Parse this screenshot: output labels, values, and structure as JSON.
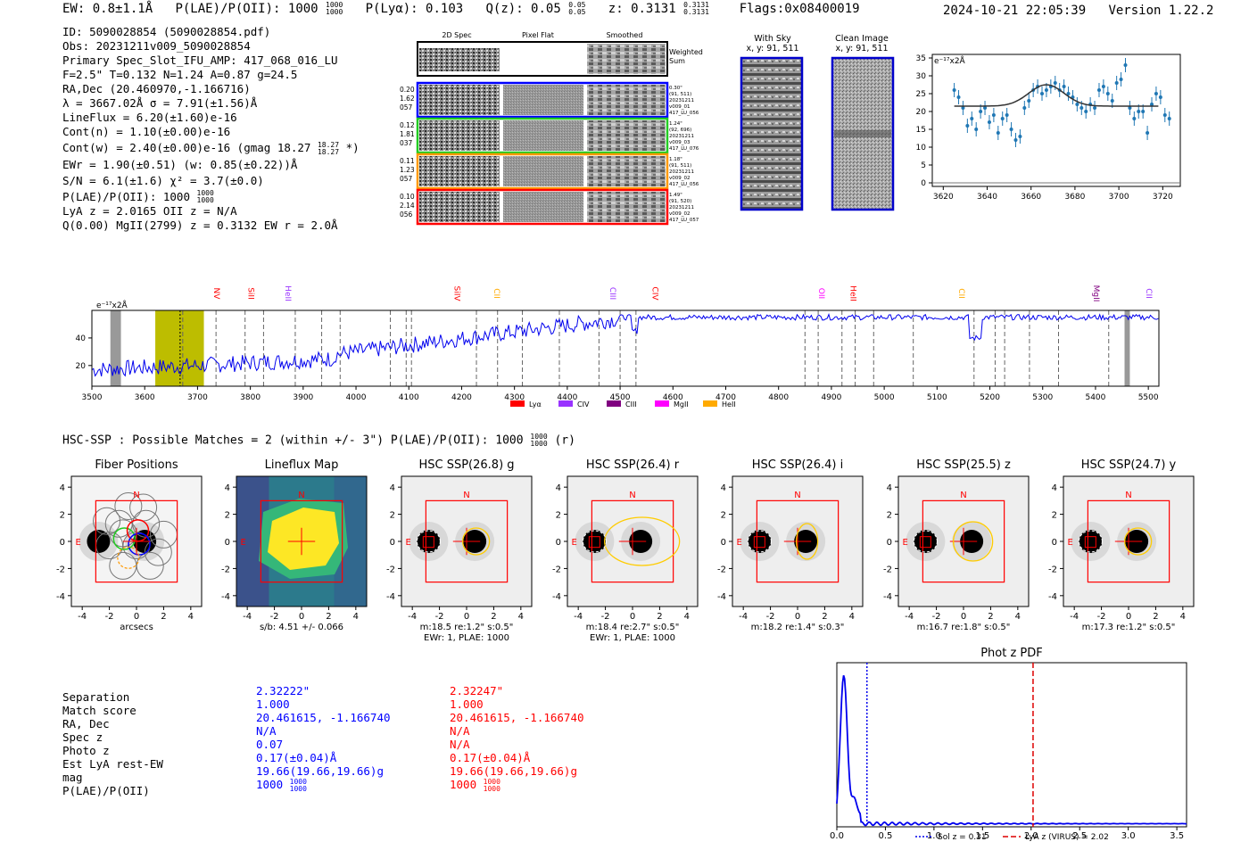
{
  "header": {
    "ew_label": "EW: 0.8±1.1Å",
    "plae_label": "P(LAE)/P(OII): 1000",
    "plae_sup": "1000",
    "plae_sub": "1000",
    "plya_label": "P(Lyα): 0.103",
    "qz_label": "Q(z): 0.05",
    "qz_sup": "0.05",
    "qz_sub": "0.05",
    "z_label": "z: 0.3131",
    "z_sup": "0.3131",
    "z_sub": "0.3131",
    "flags": "Flags:0x08400019",
    "timestamp": "2024-10-21 22:05:39",
    "version": "Version 1.22.2"
  },
  "info": {
    "lines": [
      "ID: 5090028854 (5090028854.pdf)",
      "Obs: 20231211v009_5090028854",
      "Primary Spec_Slot_IFU_AMP: 417_068_016_LU",
      "F=2.5\"  T=0.132  N=1.24  A=0.87  g=24.5",
      "RA,Dec (20.460970,-1.166716)",
      "λ = 3667.02Å  σ = 7.91(±1.56)Å",
      "LineFlux = 6.20(±1.60)e-16",
      "Cont(n) = 1.10(±0.00)e-16"
    ],
    "contw": "Cont(w) = 2.40(±0.00)e-16 (gmag 18.27",
    "contw_sup": "18.27",
    "contw_sub": "18.27",
    "contw_end": "*)",
    "ewr": "EWr = 1.90(±0.51) (w: 0.85(±0.22))Å",
    "sn": "S/N = 6.1(±1.6)  χ² = 3.7(±0.0)",
    "plae": "P(LAE)/P(OII): 1000",
    "plae_sup": "1000",
    "plae_sub": "1000",
    "lya": "LyA z = 2.0165  OII z = N/A",
    "q": "Q(0.00) MgII(2799) z = 0.3132  EW r = 2.0Å"
  },
  "cutouts": {
    "col_headers": [
      "2D Spec",
      "Pixel Flat",
      "Smoothed"
    ],
    "weighted_sum": "Weighted Sum",
    "rows": [
      {
        "left": [
          "0.20",
          "1.62",
          "057"
        ],
        "right": [
          "0.30\"",
          "(91, 511)",
          "20231211",
          "v009_01",
          "417_LU_056"
        ],
        "color": "#0000ff"
      },
      {
        "left": [
          "0.12",
          "1.81",
          "037"
        ],
        "right": [
          "1.24\"",
          "(92, 696)",
          "20231211",
          "v009_03",
          "417_LU_076"
        ],
        "color": "#22cc22"
      },
      {
        "left": [
          "0.11",
          "1.23",
          "057"
        ],
        "right": [
          "1.18\"",
          "(91, 511)",
          "20231211",
          "v009_02",
          "417_LU_056"
        ],
        "color": "#ff9900"
      },
      {
        "left": [
          "0.10",
          "2.14",
          "056"
        ],
        "right": [
          "1.49\"",
          "(91, 520)",
          "20231211",
          "v009_02",
          "417_LU_057"
        ],
        "color": "#ff0000"
      }
    ],
    "with_sky": "With Sky",
    "with_sky_xy": "x, y: 91, 511",
    "clean": "Clean Image",
    "clean_xy": "x, y: 91, 511"
  },
  "zoom_chart": {
    "type": "scatter",
    "unit_label": "e⁻¹⁷x2Å",
    "xlim": [
      3615,
      3728
    ],
    "ylim": [
      -1,
      36
    ],
    "xticks": [
      "3620",
      "3640",
      "3660",
      "3680",
      "3700",
      "3720"
    ],
    "yticks": [
      "0",
      "5",
      "10",
      "15",
      "20",
      "25",
      "30",
      "35"
    ],
    "x": [
      3625,
      3627,
      3629,
      3631,
      3633,
      3635,
      3637,
      3639,
      3641,
      3643,
      3645,
      3647,
      3649,
      3651,
      3653,
      3655,
      3657,
      3659,
      3661,
      3663,
      3665,
      3667,
      3669,
      3671,
      3673,
      3675,
      3677,
      3679,
      3681,
      3683,
      3685,
      3687,
      3689,
      3691,
      3693,
      3695,
      3697,
      3699,
      3701,
      3703,
      3705,
      3707,
      3709,
      3711,
      3713,
      3715,
      3717,
      3719,
      3721,
      3723
    ],
    "y": [
      26,
      24,
      21,
      16,
      18,
      15,
      20,
      21,
      17,
      19,
      14,
      18,
      19,
      15,
      12,
      13,
      21,
      23,
      26,
      27,
      25,
      26,
      27,
      28,
      26,
      27,
      25,
      24,
      22,
      21,
      20,
      22,
      21,
      26,
      27,
      25,
      23,
      28,
      29,
      33,
      21,
      18,
      20,
      20,
      14,
      22,
      25,
      24,
      19,
      18
    ],
    "fit_baseline": 21.5,
    "fit_peak": 27.5,
    "fit_center": 3667,
    "fit_sigma": 8
  },
  "full_spectrum": {
    "type": "line",
    "unit_label": "e⁻¹⁷x2Å",
    "xlim": [
      3500,
      5520
    ],
    "ylim": [
      5,
      60
    ],
    "xticks": [
      "3500",
      "3600",
      "3700",
      "3800",
      "3900",
      "4000",
      "4100",
      "4200",
      "4300",
      "4400",
      "4500",
      "4600",
      "4700",
      "4800",
      "4900",
      "5000",
      "5100",
      "5200",
      "5300",
      "5400",
      "5500"
    ],
    "yticks": [
      "20",
      "40"
    ],
    "line_labels": [
      {
        "name": "NV",
        "x": 3745,
        "color": "#ff0000"
      },
      {
        "name": "SiII",
        "x": 3810,
        "color": "#ff0000"
      },
      {
        "name": "HeII",
        "x": 3880,
        "color": "#9933ff"
      },
      {
        "name": "SiIV",
        "x": 4200,
        "color": "#ff0000"
      },
      {
        "name": "CII",
        "x": 4275,
        "color": "#ffaa00"
      },
      {
        "name": "CIII",
        "x": 4495,
        "color": "#9933ff"
      },
      {
        "name": "CIV",
        "x": 4575,
        "color": "#ff0000"
      },
      {
        "name": "OII",
        "x": 4890,
        "color": "#ff00ff"
      },
      {
        "name": "HeII",
        "x": 4950,
        "color": "#ff0000"
      },
      {
        "name": "CII",
        "x": 5155,
        "color": "#ffaa00"
      },
      {
        "name": "MgII",
        "x": 5410,
        "color": "#800080"
      },
      {
        "name": "CII",
        "x": 5510,
        "color": "#9933ff"
      }
    ],
    "dashed_lines": [
      3672,
      3735,
      3790,
      3825,
      3885,
      3935,
      3970,
      4065,
      4095,
      4105,
      4228,
      4268,
      4315,
      4385,
      4460,
      4500,
      4530,
      4850,
      4875,
      4920,
      4945,
      4980,
      5055,
      5170,
      5210,
      5228,
      5275,
      5330,
      5425
    ],
    "legend": [
      {
        "label": "Lyα",
        "color": "#ff0000"
      },
      {
        "label": "CIV",
        "color": "#9933ff"
      },
      {
        "label": "CIII",
        "color": "#800080"
      },
      {
        "label": "MgII",
        "color": "#ff00ff"
      },
      {
        "label": "HeII",
        "color": "#ffaa00"
      }
    ]
  },
  "hsc": {
    "title": "HSC-SSP : Possible Matches = 2 (within +/- 3\")  P(LAE)/P(OII): 1000",
    "title_sup": "1000",
    "title_sub": "1000",
    "title_end": "(r)",
    "panels": [
      {
        "title": "Fiber Positions",
        "caption1": "arcsecs",
        "caption2": ""
      },
      {
        "title": "Lineflux Map",
        "caption1": "s/b: 4.51 +/- 0.066",
        "caption2": ""
      },
      {
        "title": "HSC SSP(26.8) g",
        "caption1": "m:18.5   re:1.2\"   s:0.5\"",
        "caption2": "EWr: 1, PLAE: 1000"
      },
      {
        "title": "HSC SSP(26.4) r",
        "caption1": "m:18.4   re:2.7\"   s:0.5\"",
        "caption2": "EWr: 1, PLAE: 1000"
      },
      {
        "title": "HSC SSP(26.4) i",
        "caption1": "m:18.2   re:1.4\"   s:0.3\"",
        "caption2": ""
      },
      {
        "title": "HSC SSP(25.5) z",
        "caption1": "m:16.7   re:1.8\"   s:0.5\"",
        "caption2": ""
      },
      {
        "title": "HSC SSP(24.7) y",
        "caption1": "m:17.3   re:1.2\"   s:0.5\"",
        "caption2": ""
      }
    ],
    "ticks": [
      "-4",
      "-2",
      "0",
      "2",
      "4"
    ],
    "north": "N",
    "east": "E"
  },
  "match_table": {
    "labels": [
      "Separation",
      "Match score",
      "RA, Dec",
      "Spec z",
      "Photo z",
      "Est LyA rest-EW",
      "mag",
      "P(LAE)/P(OII)"
    ],
    "col1": [
      "2.32222\"",
      "1.000",
      "20.461615, -1.166740",
      "N/A",
      "0.07",
      "0.17(±0.04)Å",
      "19.66(19.66,19.66)g",
      "1000"
    ],
    "col2": [
      "2.32247\"",
      "1.000",
      "20.461615, -1.166740",
      "N/A",
      "N/A",
      "0.17(±0.04)Å",
      "19.66(19.66,19.66)g",
      "1000"
    ],
    "plae_sup": "1000",
    "plae_sub": "1000"
  },
  "photz": {
    "type": "line",
    "title": "Phot z PDF",
    "xlim": [
      0,
      3.6
    ],
    "xticks": [
      "0.0",
      "0.5",
      "1.0",
      "1.5",
      "2.0",
      "2.5",
      "3.0",
      "3.5"
    ],
    "sol_z": 0.31,
    "lya_z": 2.02,
    "legend_sol": "Sol z = 0.31",
    "legend_lya": "LyA z (VIRUS) = 2.02"
  }
}
